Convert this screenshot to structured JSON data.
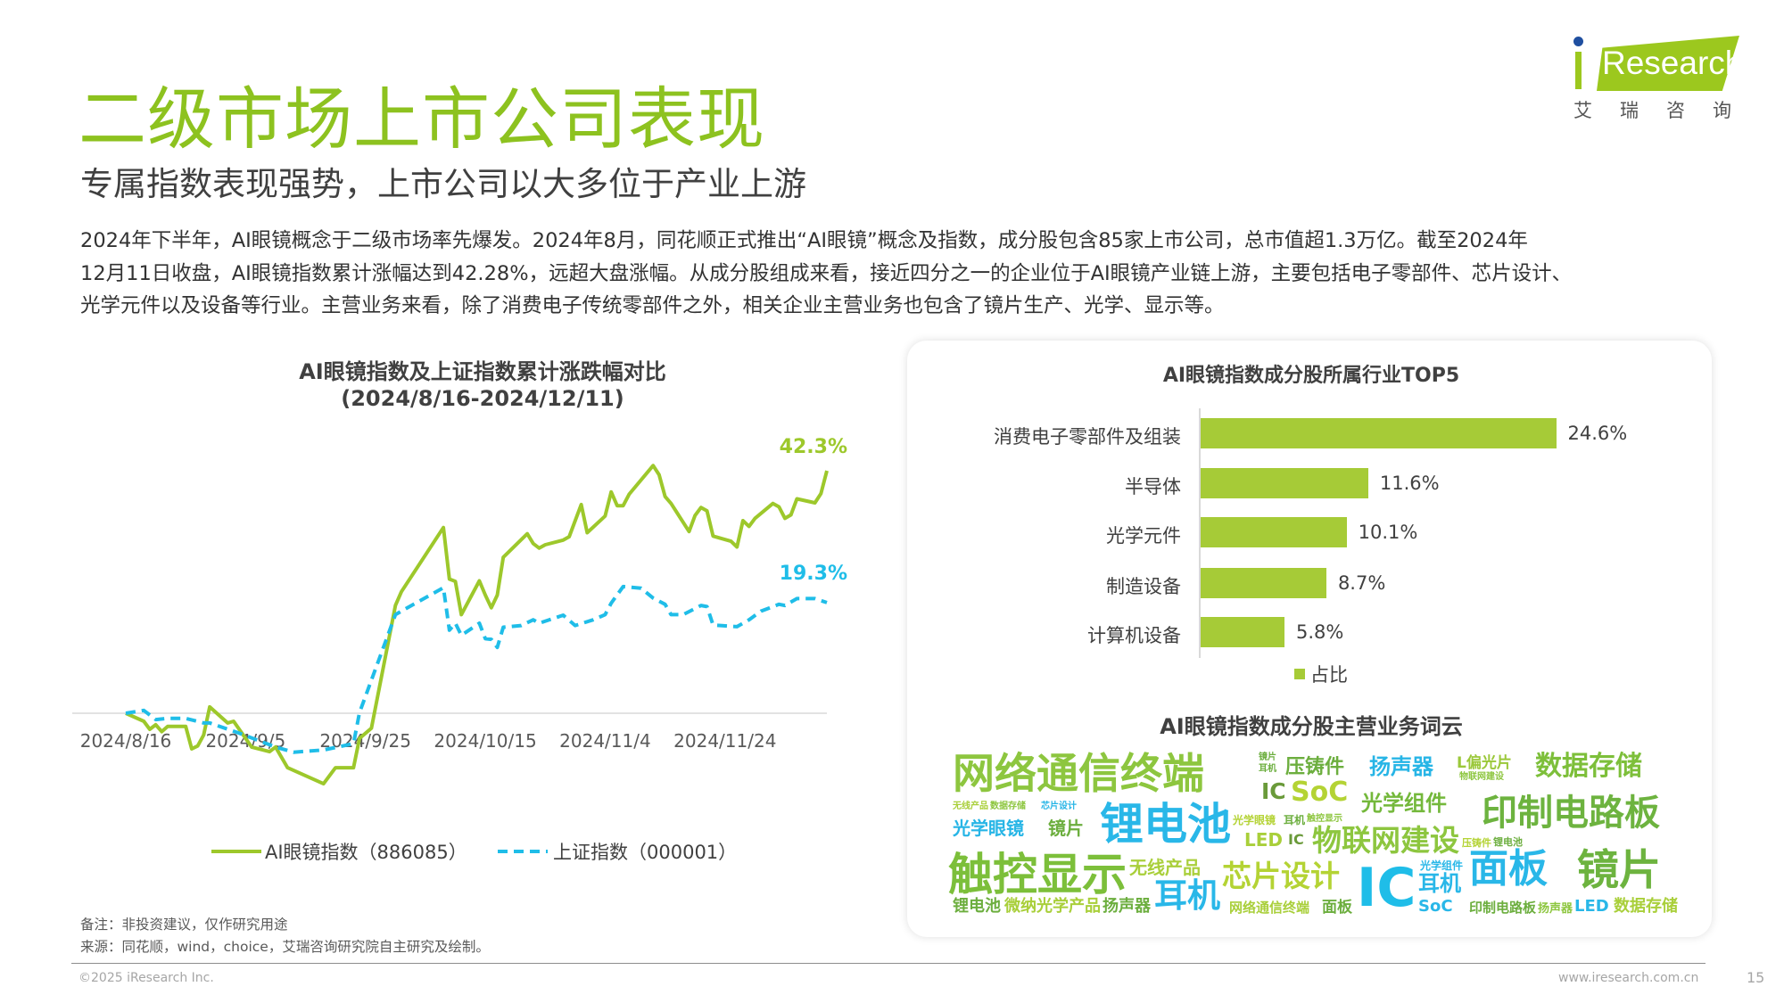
{
  "header": {
    "title": "二级市场上市公司表现",
    "subtitle": "专属指数表现强势，上市公司以大多位于产业上游",
    "paragraph_lines": [
      "2024年下半年，AI眼镜概念于二级市场率先爆发。2024年8月，同花顺正式推出“AI眼镜”概念及指数，成分股包含85家上市公司，总市值超1.3万亿。截至2024年",
      "12月11日收盘，AI眼镜指数累计涨幅达到42.28%，远超大盘涨幅。从成分股组成来看，接近四分之一的企业位于AI眼镜产业链上游，主要包括电子零部件、芯片设计、",
      "光学元件以及设备等行业。主营业务来看，除了消费电子传统零部件之外，相关企业主营业务也包含了镜片生产、光学、显示等。"
    ]
  },
  "logo": {
    "text": "iResearch",
    "cn": "艾瑞咨询",
    "color": "#9cc81e",
    "dot_color": "#1f4fa0"
  },
  "chart_data": [
    {
      "type": "line",
      "title": "AI眼镜指数及上证指数累计涨跌幅对比",
      "subtitle": "(2024/8/16-2024/12/11)",
      "x_ticks": [
        "2024/8/16",
        "2024/9/5",
        "2024/9/25",
        "2024/10/15",
        "2024/11/4",
        "2024/11/24"
      ],
      "x_tick_dates": [
        "2024-08-16",
        "2024-09-05",
        "2024-09-25",
        "2024-10-15",
        "2024-11-04",
        "2024-11-24"
      ],
      "xlim": [
        "2024-08-16",
        "2024-12-11"
      ],
      "ylim": [
        -15,
        50
      ],
      "y_unit": "%",
      "grid": false,
      "zero_line": true,
      "legend_position": "bottom",
      "series": [
        {
          "name": "AI眼镜指数（886085）",
          "color": "#9dc82b",
          "style": "solid",
          "end_label": "42.3%",
          "points": [
            [
              "2024-08-16",
              0
            ],
            [
              "2024-08-19",
              -1.4
            ],
            [
              "2024-08-20",
              -2.8
            ],
            [
              "2024-08-21",
              -2.0
            ],
            [
              "2024-08-22",
              -3.2
            ],
            [
              "2024-08-23",
              -2.3
            ],
            [
              "2024-08-26",
              -2.3
            ],
            [
              "2024-08-27",
              -6.2
            ],
            [
              "2024-08-28",
              -5.7
            ],
            [
              "2024-08-29",
              -3.8
            ],
            [
              "2024-08-30",
              1.1
            ],
            [
              "2024-09-02",
              -1.7
            ],
            [
              "2024-09-03",
              -1.4
            ],
            [
              "2024-09-06",
              -5.9
            ],
            [
              "2024-09-09",
              -6.7
            ],
            [
              "2024-09-10",
              -5.9
            ],
            [
              "2024-09-12",
              -9.5
            ],
            [
              "2024-09-18",
              -12.3
            ],
            [
              "2024-09-20",
              -9.5
            ],
            [
              "2024-09-23",
              -9.5
            ],
            [
              "2024-09-24",
              -4.4
            ],
            [
              "2024-09-26",
              -2.6
            ],
            [
              "2024-09-30",
              18.8
            ],
            [
              "2024-10-01",
              21.2
            ],
            [
              "2024-10-08",
              32.4
            ],
            [
              "2024-10-09",
              23.4
            ],
            [
              "2024-10-10",
              23.0
            ],
            [
              "2024-10-11",
              17.2
            ],
            [
              "2024-10-14",
              23.1
            ],
            [
              "2024-10-15",
              20.6
            ],
            [
              "2024-10-16",
              18.4
            ],
            [
              "2024-10-17",
              20.6
            ],
            [
              "2024-10-18",
              27.2
            ],
            [
              "2024-10-22",
              31.3
            ],
            [
              "2024-10-23",
              29.6
            ],
            [
              "2024-10-24",
              28.8
            ],
            [
              "2024-10-25",
              29.4
            ],
            [
              "2024-10-28",
              30.2
            ],
            [
              "2024-10-29",
              30.8
            ],
            [
              "2024-10-31",
              36.4
            ],
            [
              "2024-11-01",
              31.5
            ],
            [
              "2024-11-04",
              34.4
            ],
            [
              "2024-11-05",
              38.6
            ],
            [
              "2024-11-06",
              36.2
            ],
            [
              "2024-11-07",
              36.2
            ],
            [
              "2024-11-08",
              38.2
            ],
            [
              "2024-11-12",
              43.2
            ],
            [
              "2024-11-13",
              41.6
            ],
            [
              "2024-11-14",
              37.8
            ],
            [
              "2024-11-15",
              36.6
            ],
            [
              "2024-11-18",
              31.7
            ],
            [
              "2024-11-19",
              34.5
            ],
            [
              "2024-11-20",
              35.9
            ],
            [
              "2024-11-21",
              35.3
            ],
            [
              "2024-11-22",
              30.9
            ],
            [
              "2024-11-25",
              30.0
            ],
            [
              "2024-11-26",
              29.0
            ],
            [
              "2024-11-27",
              33.6
            ],
            [
              "2024-11-28",
              32.6
            ],
            [
              "2024-11-29",
              34.0
            ],
            [
              "2024-12-02",
              36.6
            ],
            [
              "2024-12-03",
              36.0
            ],
            [
              "2024-12-04",
              34.0
            ],
            [
              "2024-12-05",
              34.6
            ],
            [
              "2024-12-06",
              37.4
            ],
            [
              "2024-12-09",
              36.7
            ],
            [
              "2024-12-10",
              38.3
            ],
            [
              "2024-12-11",
              42.3
            ]
          ]
        },
        {
          "name": "上证指数（000001）",
          "color": "#1fbde8",
          "style": "dashed",
          "end_label": "19.3%",
          "points": [
            [
              "2024-08-16",
              0
            ],
            [
              "2024-08-19",
              0.5
            ],
            [
              "2024-08-21",
              -1.1
            ],
            [
              "2024-08-23",
              -0.9
            ],
            [
              "2024-08-26",
              -0.9
            ],
            [
              "2024-08-29",
              -1.7
            ],
            [
              "2024-08-30",
              -1.7
            ],
            [
              "2024-09-04",
              -3.5
            ],
            [
              "2024-09-10",
              -5.9
            ],
            [
              "2024-09-13",
              -6.8
            ],
            [
              "2024-09-18",
              -6.4
            ],
            [
              "2024-09-23",
              -5.3
            ],
            [
              "2024-09-24",
              0.1
            ],
            [
              "2024-09-30",
              17.2
            ],
            [
              "2024-10-01",
              17.8
            ],
            [
              "2024-10-08",
              21.9
            ],
            [
              "2024-10-09",
              14.5
            ],
            [
              "2024-10-10",
              15.7
            ],
            [
              "2024-10-11",
              13.6
            ],
            [
              "2024-10-14",
              15.7
            ],
            [
              "2024-10-15",
              13.0
            ],
            [
              "2024-10-16",
              12.9
            ],
            [
              "2024-10-17",
              11.5
            ],
            [
              "2024-10-18",
              15.0
            ],
            [
              "2024-10-21",
              15.3
            ],
            [
              "2024-10-23",
              16.3
            ],
            [
              "2024-10-24",
              15.7
            ],
            [
              "2024-10-28",
              17.1
            ],
            [
              "2024-10-30",
              15.3
            ],
            [
              "2024-11-02",
              16.3
            ],
            [
              "2024-11-04",
              17.2
            ],
            [
              "2024-11-05",
              19.2
            ],
            [
              "2024-11-07",
              22.1
            ],
            [
              "2024-11-10",
              21.8
            ],
            [
              "2024-11-12",
              20.1
            ],
            [
              "2024-11-14",
              19.0
            ],
            [
              "2024-11-15",
              17.2
            ],
            [
              "2024-11-17",
              17.2
            ],
            [
              "2024-11-20",
              18.8
            ],
            [
              "2024-11-21",
              18.6
            ],
            [
              "2024-11-22",
              15.4
            ],
            [
              "2024-11-26",
              15.1
            ],
            [
              "2024-11-28",
              16.3
            ],
            [
              "2024-11-30",
              17.8
            ],
            [
              "2024-12-03",
              19.0
            ],
            [
              "2024-12-04",
              18.8
            ],
            [
              "2024-12-06",
              20.0
            ],
            [
              "2024-12-09",
              20.0
            ],
            [
              "2024-12-11",
              19.3
            ]
          ]
        }
      ]
    },
    {
      "type": "bar",
      "orientation": "horizontal",
      "title": "AI眼镜指数成分股所属行业TOP5",
      "categories": [
        "消费电子零部件及组装",
        "半导体",
        "光学元件",
        "制造设备",
        "计算机设备"
      ],
      "values": [
        24.6,
        11.6,
        10.1,
        8.7,
        5.8
      ],
      "value_labels": [
        "24.6%",
        "11.6%",
        "10.1%",
        "8.7%",
        "5.8%"
      ],
      "series_name": "占比",
      "color": "#a6cb37",
      "xlim": [
        0,
        30
      ],
      "legend_position": "bottom"
    }
  ],
  "wordcloud": {
    "title": "AI眼镜指数成分股主营业务词云",
    "words": [
      {
        "text": "网络通信终端",
        "color": "#8dc63f"
      },
      {
        "text": "压铸件",
        "color": "#6cae3e"
      },
      {
        "text": "扬声器",
        "color": "#27b5e6"
      },
      {
        "text": "L偏光片",
        "color": "#9bc83a"
      },
      {
        "text": "数据存储",
        "color": "#7dbf3a"
      },
      {
        "text": "IC",
        "color": "#6a9a3a"
      },
      {
        "text": "SoC",
        "color": "#b4d334"
      },
      {
        "text": "物联网建设",
        "color": "#8dc63f"
      },
      {
        "text": "光学组件",
        "color": "#74b83b"
      },
      {
        "text": "印制电路板",
        "color": "#6db33f"
      },
      {
        "text": "光学眼镜",
        "color": "#27b5e6"
      },
      {
        "text": "镜片",
        "color": "#6cae3e"
      },
      {
        "text": "锂电池",
        "color": "#29b7e8"
      },
      {
        "text": "光学眼镜",
        "color": "#b4d334"
      },
      {
        "text": "耳机",
        "color": "#6cae3e"
      },
      {
        "text": "触控显示",
        "color": "#8dc63f"
      },
      {
        "text": "LED",
        "color": "#a9cf3a"
      },
      {
        "text": "IC",
        "color": "#6a9a3a"
      },
      {
        "text": "物联网建设",
        "color": "#8dc63f"
      },
      {
        "text": "触控显示",
        "color": "#7cbf3a"
      },
      {
        "text": "无线产品",
        "color": "#a9cf3a"
      },
      {
        "text": "芯片设计",
        "color": "#b4d334"
      },
      {
        "text": "IC",
        "color": "#1fbde8"
      },
      {
        "text": "耳机",
        "color": "#29b7e8"
      },
      {
        "text": "光学组件",
        "color": "#29b7e8"
      },
      {
        "text": "耳机",
        "color": "#29b7e8"
      },
      {
        "text": "面板",
        "color": "#29b7e8"
      },
      {
        "text": "镜片",
        "color": "#6db33f"
      },
      {
        "text": "锂电池",
        "color": "#6cae3e"
      },
      {
        "text": "微纳光学产品",
        "color": "#a9cf3a"
      },
      {
        "text": "扬声器",
        "color": "#6cae3e"
      },
      {
        "text": "网络通信终端",
        "color": "#a9cf3a"
      },
      {
        "text": "面板",
        "color": "#6cae3e"
      },
      {
        "text": "SoC",
        "color": "#29b7e8"
      },
      {
        "text": "印制电路板",
        "color": "#6cae3e"
      },
      {
        "text": "扬声器",
        "color": "#8dc63f"
      },
      {
        "text": "LED",
        "color": "#29b7e8"
      },
      {
        "text": "数据存储",
        "color": "#a9cf3a"
      },
      {
        "text": "无线产品",
        "color": "#a9cf3a"
      },
      {
        "text": "数据存储",
        "color": "#8dc63f"
      },
      {
        "text": "芯片设计",
        "color": "#27b5e6"
      },
      {
        "text": "镜片",
        "color": "#6cae3e"
      },
      {
        "text": "耳机",
        "color": "#6cae3e"
      },
      {
        "text": "压铸件",
        "color": "#b4d334"
      },
      {
        "text": "锂电池",
        "color": "#6cae3e"
      }
    ]
  },
  "notes": {
    "remark": "备注：非投资建议，仅作研究用途",
    "source": "来源：同花顺，wind，choice，艾瑞咨询研究院自主研究及绘制。"
  },
  "footer": {
    "copyright": "©2025 iResearch Inc.",
    "website": "www.iresearch.com.cn",
    "page": "15"
  }
}
